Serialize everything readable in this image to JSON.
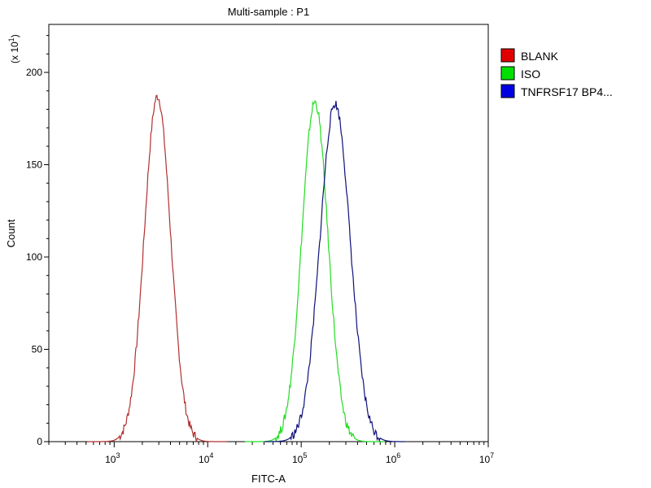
{
  "chart_data": {
    "type": "line",
    "title": "Multi-sample : P1",
    "xlabel": "FITC-A",
    "ylabel": "Count",
    "y_multiplier_label": "(x 10",
    "y_multiplier_exp": "1",
    "x_scale": "log",
    "xlim": [
      200,
      10000000
    ],
    "ylim": [
      0,
      226
    ],
    "x_ticks": [
      {
        "value": 1000,
        "base": "10",
        "exp": "3"
      },
      {
        "value": 10000,
        "base": "10",
        "exp": "4"
      },
      {
        "value": 100000,
        "base": "10",
        "exp": "5"
      },
      {
        "value": 1000000,
        "base": "10",
        "exp": "6"
      },
      {
        "value": 10000000,
        "base": "10",
        "exp": "7"
      }
    ],
    "y_ticks": [
      {
        "value": 0,
        "label": "0"
      },
      {
        "value": 50,
        "label": "50"
      },
      {
        "value": 100,
        "label": "100"
      },
      {
        "value": 150,
        "label": "150"
      },
      {
        "value": 200,
        "label": "200"
      }
    ],
    "legend_position": "right",
    "series": [
      {
        "name": "BLANK",
        "color": "#e00000",
        "line_color": "#b03030",
        "peak_x": 2900,
        "peak_y": 187,
        "sigma_decades": 0.14
      },
      {
        "name": "ISO",
        "color": "#00e000",
        "line_color": "#22dd22",
        "peak_x": 140000,
        "peak_y": 184,
        "sigma_decades": 0.14
      },
      {
        "name": "TNFRSF17 BP4...",
        "color": "#0000e0",
        "line_color": "#10107a",
        "peak_x": 230000,
        "peak_y": 183,
        "sigma_decades": 0.16
      }
    ]
  }
}
